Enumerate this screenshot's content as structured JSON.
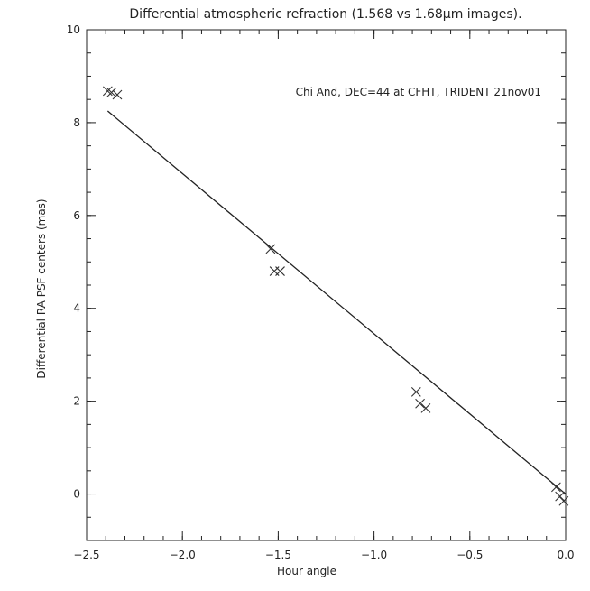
{
  "chart_data": {
    "type": "scatter",
    "title": "Differential atmospheric refraction (1.568 vs 1.68μm images).",
    "xlabel": "Hour angle",
    "ylabel": "Differential RA PSF centers (mas)",
    "xlim": [
      -2.5,
      0.0
    ],
    "ylim": [
      -1,
      10
    ],
    "x_ticks": [
      -2.5,
      -2.0,
      -1.5,
      -1.0,
      -0.5,
      0.0
    ],
    "x_tick_labels": [
      "−2.5",
      "−2.0",
      "−1.5",
      "−1.0",
      "−0.5",
      "0.0"
    ],
    "y_ticks": [
      0,
      2,
      4,
      6,
      8,
      10
    ],
    "y_tick_labels": [
      "0",
      "2",
      "4",
      "6",
      "8",
      "10"
    ],
    "x_minor_step": 0.1,
    "y_minor_step": 0.5,
    "grid": false,
    "annotation": "Chi And, DEC=44 at CFHT, TRIDENT 21nov01",
    "colors": {
      "axes": "#222222",
      "marker": "#333333",
      "fit_line": "#222222"
    },
    "series": [
      {
        "marker": "x",
        "x": [
          -2.39,
          -2.37,
          -2.34,
          -1.54,
          -1.52,
          -1.49,
          -0.78,
          -0.76,
          -0.73,
          -0.05,
          -0.03,
          -0.01
        ],
        "y": [
          8.68,
          8.65,
          8.6,
          5.28,
          4.8,
          4.8,
          2.2,
          1.95,
          1.85,
          0.15,
          -0.05,
          -0.15
        ]
      }
    ],
    "fit_line": {
      "x": [
        -2.39,
        0.0
      ],
      "y": [
        8.25,
        0.0
      ]
    }
  }
}
